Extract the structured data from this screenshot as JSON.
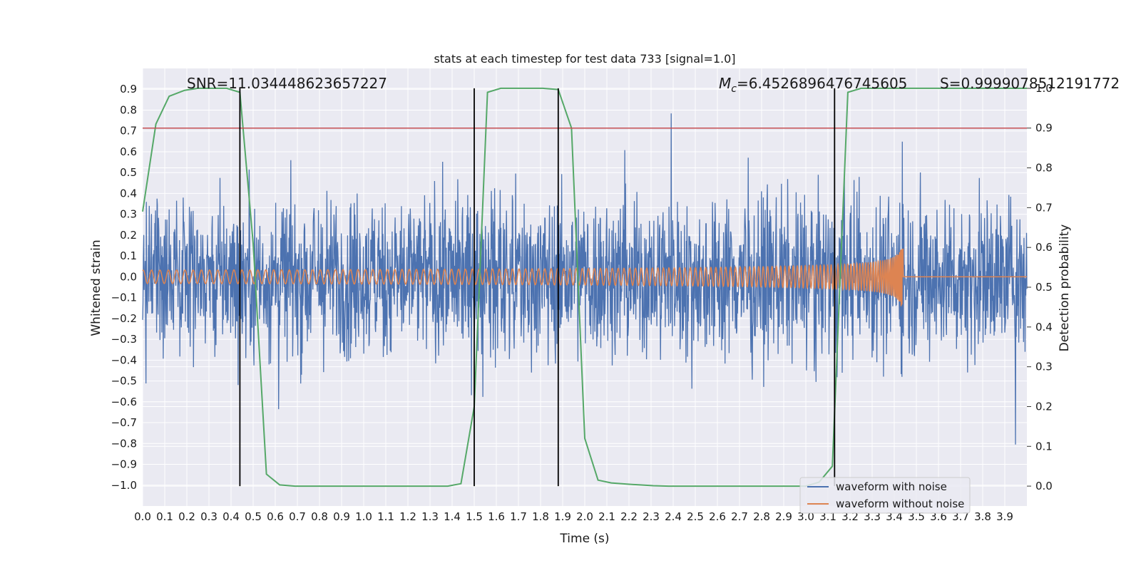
{
  "chart_data": {
    "type": "line",
    "title": "stats at each timestep for test data 733 [signal=1.0]",
    "xlabel": "Time (s)",
    "ylabel": "Whitened strain",
    "y2label": "Detection probability",
    "xlim": [
      0.0,
      4.0
    ],
    "ylim": [
      -1.1,
      1.0
    ],
    "y2lim": [
      -0.05,
      1.05
    ],
    "xticks": [
      "0.0",
      "0.1",
      "0.2",
      "0.3",
      "0.4",
      "0.5",
      "0.6",
      "0.7",
      "0.8",
      "0.9",
      "1.0",
      "1.1",
      "1.2",
      "1.3",
      "1.4",
      "1.5",
      "1.6",
      "1.7",
      "1.8",
      "1.9",
      "2.0",
      "2.1",
      "2.2",
      "2.3",
      "2.4",
      "2.5",
      "2.6",
      "2.7",
      "2.8",
      "2.9",
      "3.0",
      "3.1",
      "3.2",
      "3.3",
      "3.4",
      "3.5",
      "3.6",
      "3.7",
      "3.8",
      "3.9"
    ],
    "yticks": [
      "0.9",
      "0.8",
      "0.7",
      "0.6",
      "0.5",
      "0.4",
      "0.3",
      "0.2",
      "0.1",
      "0.0",
      "−0.1",
      "−0.2",
      "−0.3",
      "−0.4",
      "−0.5",
      "−0.6",
      "−0.7",
      "−0.8",
      "−0.9",
      "−1.0"
    ],
    "y2ticks": [
      "1.0",
      "0.9",
      "0.8",
      "0.7",
      "0.6",
      "0.5",
      "0.4",
      "0.3",
      "0.2",
      "0.1",
      "0.0"
    ],
    "grid": true,
    "legend_position": "bottom-right",
    "annotations": {
      "snr": "SNR=11.034448623657227",
      "mc_symbol": "M",
      "mc_sub": "c",
      "mc_value": "=6.4526896476745605",
      "s": "S=0.9999078512191772"
    },
    "threshold": 0.9,
    "vlines": [
      0.44,
      1.5,
      1.88,
      3.13
    ],
    "signal_merger_time": 3.44,
    "series": [
      {
        "name": "waveform with noise",
        "color": "#4c72b0"
      },
      {
        "name": "waveform without noise",
        "color": "#dd8452"
      },
      {
        "name": "",
        "color": "#55a868",
        "x": [
          0.0,
          0.06,
          0.12,
          0.19,
          0.25,
          0.31,
          0.38,
          0.44,
          0.5,
          0.56,
          0.62,
          0.69,
          0.75,
          0.81,
          0.88,
          0.94,
          1.0,
          1.06,
          1.12,
          1.19,
          1.25,
          1.31,
          1.38,
          1.44,
          1.5,
          1.56,
          1.62,
          1.69,
          1.75,
          1.81,
          1.88,
          1.94,
          2.0,
          2.06,
          2.12,
          2.19,
          2.25,
          2.31,
          2.38,
          2.44,
          2.5,
          2.56,
          2.62,
          2.69,
          2.75,
          2.81,
          2.88,
          2.94,
          3.0,
          3.06,
          3.12,
          3.19,
          3.25,
          3.31,
          3.38,
          3.44,
          3.5,
          3.56,
          3.62,
          3.69,
          3.75,
          3.81,
          3.88,
          3.94,
          4.0
        ],
        "values": [
          0.69,
          0.91,
          0.98,
          0.995,
          1.0,
          1.0,
          1.0,
          0.99,
          0.61,
          0.03,
          0.003,
          0.0,
          0.0,
          0.0,
          0.0,
          0.0,
          0.0,
          0.0,
          0.0,
          0.0,
          0.0,
          0.0,
          0.0,
          0.006,
          0.2,
          0.99,
          1.0,
          1.0,
          1.0,
          1.0,
          0.997,
          0.9,
          0.12,
          0.015,
          0.008,
          0.005,
          0.003,
          0.001,
          0.0,
          0.0,
          0.0,
          0.0,
          0.0,
          0.0,
          0.0,
          0.0,
          0.0,
          0.0,
          0.0,
          0.01,
          0.05,
          0.99,
          1.0,
          1.0,
          1.0,
          1.0,
          1.0,
          1.0,
          1.0,
          1.0,
          1.0,
          1.0,
          1.0,
          1.0,
          1.0
        ]
      }
    ],
    "colors": {
      "threshold": "#c44e52",
      "vline": "#000000",
      "axes_bg": "#eaeaf2",
      "grid": "#ffffff"
    }
  }
}
